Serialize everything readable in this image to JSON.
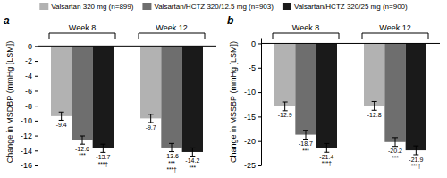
{
  "chart_data": [
    {
      "type": "bar",
      "title": "a",
      "y_label": "Change in MSDBP (mmHg [LSM])",
      "categories": [
        "Week 8",
        "Week 12"
      ],
      "series": [
        {
          "name": "Valsartan 320 mg (n=899)",
          "color": "#b2b2b2",
          "values": [
            -9.4,
            -9.7
          ],
          "errors": [
            0.55,
            0.55
          ]
        },
        {
          "name": "Valsartan/HCTZ 320/12.5 mg (n=903)",
          "color": "#6e6e6e",
          "values": [
            -12.6,
            -13.6
          ],
          "errors": [
            0.55,
            0.55
          ],
          "annotations": [
            [
              "***"
            ],
            [
              "***",
              "***†"
            ]
          ]
        },
        {
          "name": "Valsartan/HCTZ 320/25 mg (n=900)",
          "color": "#1a1a1a",
          "values": [
            -13.7,
            -14.2
          ],
          "errors": [
            0.55,
            0.55
          ],
          "annotations": [
            [
              "***†"
            ],
            [
              "***"
            ]
          ]
        }
      ],
      "ylim": [
        -16,
        1.0
      ],
      "yticks": [
        0,
        -2,
        -4,
        -6,
        -8,
        -10,
        -12,
        -14,
        -16
      ],
      "data_labels": true,
      "legend": "top"
    },
    {
      "type": "bar",
      "title": "b",
      "y_label": "Change in MSSBP (mmHg [LSM])",
      "categories": [
        "Week 8",
        "Week 12"
      ],
      "series": [
        {
          "color": "#b2b2b2",
          "values": [
            -12.9,
            -12.8
          ],
          "errors": [
            0.9,
            0.9
          ]
        },
        {
          "color": "#6e6e6e",
          "values": [
            -18.7,
            -20.2
          ],
          "errors": [
            0.9,
            0.9
          ],
          "annotations": [
            [
              "***"
            ],
            [
              "***"
            ]
          ]
        },
        {
          "color": "#1a1a1a",
          "values": [
            -21.4,
            -21.9
          ],
          "errors": [
            0.9,
            0.9
          ],
          "annotations": [
            [
              "***†"
            ],
            [
              "***†"
            ]
          ]
        }
      ],
      "ylim": [
        -25,
        1.0
      ],
      "yticks": [
        0,
        -5,
        -10,
        -15,
        -20,
        -25
      ],
      "data_labels": true
    }
  ]
}
